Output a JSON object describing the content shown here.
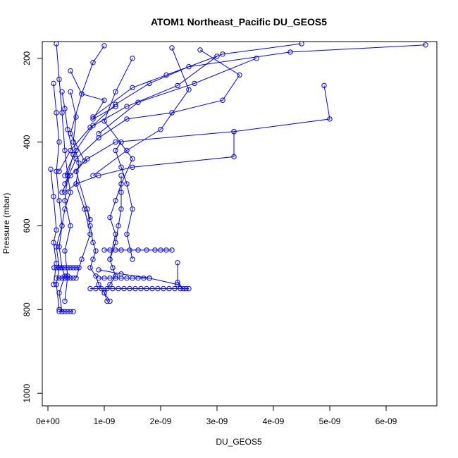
{
  "chart_data": {
    "type": "scatter",
    "title": "ATOM1 Northeast_Pacific DU_GEOS5",
    "xlabel": "DU_GEOS5",
    "ylabel": "Pressure (mbar)",
    "xlim": [
      -1e-10,
      6.9e-09
    ],
    "ylim": [
      1030,
      160
    ],
    "y_reversed": true,
    "x_ticks": [
      0,
      1e-09,
      2e-09,
      3e-09,
      4e-09,
      5e-09,
      6e-09
    ],
    "x_tick_labels": [
      "0e+00",
      "1e-09",
      "2e-09",
      "3e-09",
      "4e-09",
      "5e-09",
      "6e-09"
    ],
    "y_ticks": [
      200,
      400,
      600,
      800,
      1000
    ],
    "y_tick_labels": [
      "200",
      "400",
      "600",
      "800",
      "1000"
    ],
    "grid": false,
    "legend": "none",
    "series_style": "lines+open-circles",
    "color": "#0000ff",
    "series": [
      {
        "x": [
          1.5e-10,
          2e-10,
          2.5e-10,
          3e-10,
          3.5e-10,
          4e-10,
          3e-10,
          2.5e-10,
          2e-10,
          2.5e-10,
          3e-10,
          2e-10,
          2.5e-10
        ],
        "y": [
          165,
          250,
          330,
          420,
          480,
          520,
          560,
          600,
          650,
          700,
          720,
          760,
          805
        ]
      },
      {
        "x": [
          1e-10,
          1.5e-10,
          2e-10,
          1.5e-10,
          2e-10,
          2.5e-10,
          1.5e-10,
          2e-10,
          1.5e-10,
          2e-10
        ],
        "y": [
          260,
          330,
          400,
          470,
          540,
          600,
          650,
          700,
          740,
          800
        ]
      },
      {
        "x": [
          2.5e-10,
          3e-10,
          3.5e-10,
          4.5e-10,
          3.5e-10,
          3e-10,
          4e-10,
          3e-10,
          3.5e-10,
          3e-10
        ],
        "y": [
          280,
          320,
          370,
          430,
          480,
          540,
          600,
          660,
          720,
          780
        ]
      },
      {
        "x": [
          4e-10,
          5e-10,
          4.5e-10,
          5.5e-10,
          5e-10,
          6.5e-10,
          7.5e-10,
          6e-10,
          5e-10
        ],
        "y": [
          280,
          340,
          400,
          450,
          500,
          560,
          620,
          680,
          725
        ]
      },
      {
        "x": [
          6.7e-09,
          4.3e-09,
          2.5e-09,
          1.8e-09,
          1.2e-09,
          8e-10,
          5e-10,
          3e-10
        ],
        "y": [
          168,
          185,
          220,
          260,
          310,
          360,
          420,
          480
        ]
      },
      {
        "x": [
          4.9e-09,
          5e-09,
          3.3e-09,
          1.2e-09,
          7e-10,
          4e-10,
          2.5e-10
        ],
        "y": [
          265,
          345,
          375,
          400,
          440,
          480,
          520
        ]
      },
      {
        "x": [
          3.3e-09,
          3.3e-09,
          1.5e-09,
          9e-10,
          5e-10,
          3e-10
        ],
        "y": [
          375,
          435,
          460,
          480,
          500,
          520
        ]
      },
      {
        "x": [
          2.7e-09,
          3.4e-09,
          3.1e-09,
          2.2e-09,
          1.4e-09,
          9e-10,
          5e-10,
          3e-10
        ],
        "y": [
          180,
          240,
          300,
          330,
          345,
          390,
          440,
          500
        ]
      },
      {
        "x": [
          1.5e-09,
          1.2e-09,
          1e-09,
          1.5e-09,
          1.3e-09,
          1.2e-09,
          1.1e-09,
          1.2e-09,
          1.1e-09
        ],
        "y": [
          200,
          280,
          350,
          440,
          500,
          540,
          580,
          620,
          680
        ]
      },
      {
        "x": [
          1.3e-09,
          1.3e-09,
          1.3e-09,
          1.25e-09,
          1.2e-09,
          1.1e-09,
          1.15e-09,
          1.2e-09,
          1.1e-09,
          1e-09,
          1.05e-09
        ],
        "y": [
          480,
          520,
          560,
          600,
          640,
          680,
          700,
          720,
          740,
          760,
          780
        ]
      },
      {
        "x": [
          7e-10,
          7.5e-10,
          8e-10,
          8.5e-10,
          8e-10,
          7.5e-10,
          8.5e-10,
          9e-10,
          1e-09,
          1.1e-09
        ],
        "y": [
          560,
          600,
          640,
          660,
          680,
          700,
          720,
          740,
          760,
          780
        ]
      },
      {
        "x": [
          7.5e-10,
          8.5e-10,
          9.5e-10,
          1.05e-09,
          1.15e-09,
          1.25e-09,
          1.35e-09,
          1.45e-09,
          1.55e-09,
          1.65e-09,
          1.75e-09,
          1.85e-09,
          1.95e-09,
          2.05e-09,
          2.15e-09,
          2.25e-09,
          2.35e-09,
          2.45e-09,
          2.5e-09
        ],
        "y": [
          750,
          750,
          750,
          750,
          750,
          750,
          750,
          750,
          750,
          750,
          750,
          750,
          750,
          750,
          750,
          750,
          750,
          750,
          750
        ]
      },
      {
        "x": [
          9e-10,
          1e-09,
          1.1e-09,
          1.2e-09,
          1.3e-09,
          1.4e-09,
          1.5e-09,
          1.6e-09,
          1.7e-09,
          1.8e-09
        ],
        "y": [
          725,
          725,
          725,
          725,
          725,
          725,
          725,
          725,
          725,
          725
        ]
      },
      {
        "x": [
          1e-09,
          1.1e-09,
          1.2e-09,
          1.3e-09,
          1.45e-09,
          1.6e-09,
          1.75e-09,
          1.9e-09,
          2e-09,
          2.1e-09,
          2.2e-09
        ],
        "y": [
          658,
          658,
          658,
          658,
          658,
          658,
          658,
          658,
          658,
          658,
          658
        ]
      },
      {
        "x": [
          2.3e-09,
          2.3e-09,
          2.4e-09,
          2.3e-09,
          1.8e-09,
          1.3e-09,
          9e-10
        ],
        "y": [
          688,
          735,
          750,
          740,
          725,
          715,
          705
        ]
      },
      {
        "x": [
          1.1e-10,
          1.5e-10,
          2e-10,
          2.5e-10,
          3e-10,
          3.5e-10,
          4e-10,
          4.5e-10,
          5e-10,
          5.5e-10
        ],
        "y": [
          700,
          700,
          700,
          700,
          700,
          700,
          700,
          700,
          700,
          700
        ]
      },
      {
        "x": [
          1.5e-10,
          2e-10,
          2.5e-10,
          3e-10,
          3.5e-10,
          4e-10,
          4.5e-10
        ],
        "y": [
          725,
          725,
          725,
          725,
          725,
          725,
          725
        ]
      },
      {
        "x": [
          2e-10,
          2.5e-10,
          3e-10,
          3.5e-10,
          4e-10,
          4.5e-10
        ],
        "y": [
          805,
          805,
          805,
          805,
          805,
          805
        ]
      },
      {
        "x": [
          3e-09,
          2.3e-09,
          1.4e-09,
          7.5e-10,
          4e-10,
          2e-10
        ],
        "y": [
          195,
          265,
          315,
          365,
          420,
          470
        ]
      },
      {
        "x": [
          1.3e-09,
          1.2e-09,
          1.3e-09,
          1.4e-09,
          1.5e-09,
          1.4e-09,
          1.5e-09
        ],
        "y": [
          400,
          420,
          460,
          500,
          560,
          620,
          680
        ]
      },
      {
        "x": [
          2.2e-09,
          2.5e-09,
          2e-09,
          1.4e-09,
          8e-10
        ],
        "y": [
          175,
          275,
          370,
          420,
          480
        ]
      },
      {
        "x": [
          4e-10,
          6e-10,
          4e-10,
          6.5e-10,
          5e-10,
          7.5e-10
        ],
        "y": [
          230,
          285,
          380,
          445,
          470,
          585
        ]
      },
      {
        "x": [
          1e-09,
          8e-10,
          6e-10,
          1e-09,
          8e-10,
          1.2e-09
        ],
        "y": [
          170,
          210,
          285,
          300,
          345,
          315
        ]
      },
      {
        "x": [
          3.7e-09,
          2.6e-09,
          1.6e-09,
          9e-10
        ],
        "y": [
          200,
          260,
          305,
          380
        ]
      },
      {
        "x": [
          4.5e-09,
          3.1e-09,
          2.1e-09,
          1.5e-09,
          8e-10
        ],
        "y": [
          165,
          190,
          240,
          270,
          340
        ]
      },
      {
        "x": [
          5e-11,
          1e-10,
          1.5e-10,
          1e-10,
          1.5e-10,
          1e-10
        ],
        "y": [
          465,
          530,
          610,
          640,
          690,
          740
        ]
      }
    ]
  }
}
